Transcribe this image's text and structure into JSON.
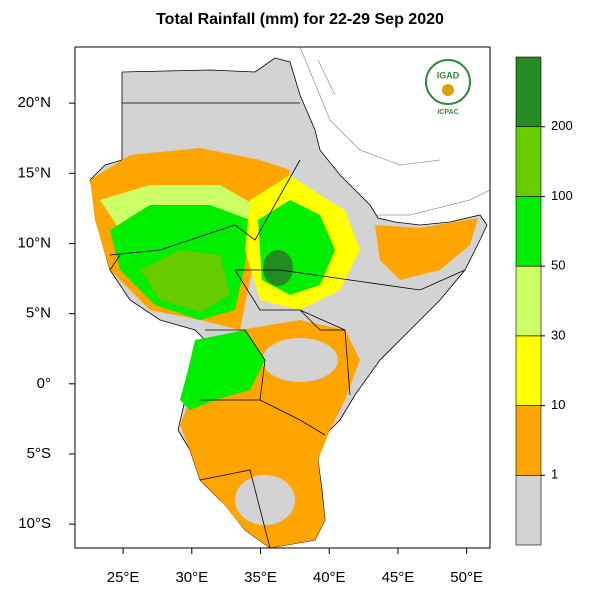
{
  "map": {
    "title": "Total Rainfall (mm) for 22-29 Sep 2020",
    "xlim": [
      21.5,
      51.7
    ],
    "ylim": [
      -11.7,
      24
    ],
    "xticks": [
      {
        "value": 25,
        "label": "25°E"
      },
      {
        "value": 30,
        "label": "30°E"
      },
      {
        "value": 35,
        "label": "35°E"
      },
      {
        "value": 40,
        "label": "40°E"
      },
      {
        "value": 45,
        "label": "45°E"
      },
      {
        "value": 50,
        "label": "50°E"
      }
    ],
    "yticks": [
      {
        "value": 20,
        "label": "20°N"
      },
      {
        "value": 15,
        "label": "15°N"
      },
      {
        "value": 10,
        "label": "10°N"
      },
      {
        "value": 5,
        "label": "5°N"
      },
      {
        "value": 0,
        "label": "0°"
      },
      {
        "value": -5,
        "label": "5°S"
      },
      {
        "value": -10,
        "label": "10°S"
      }
    ],
    "colorbar": {
      "levels": [
        1,
        10,
        30,
        50,
        100,
        200
      ],
      "colors": [
        "#d3d3d3",
        "#ffa500",
        "#ffff00",
        "#ccff66",
        "#00ee00",
        "#66cc00",
        "#228b22"
      ]
    },
    "logo": {
      "name": "IGAD",
      "org": "ICPAC"
    }
  }
}
